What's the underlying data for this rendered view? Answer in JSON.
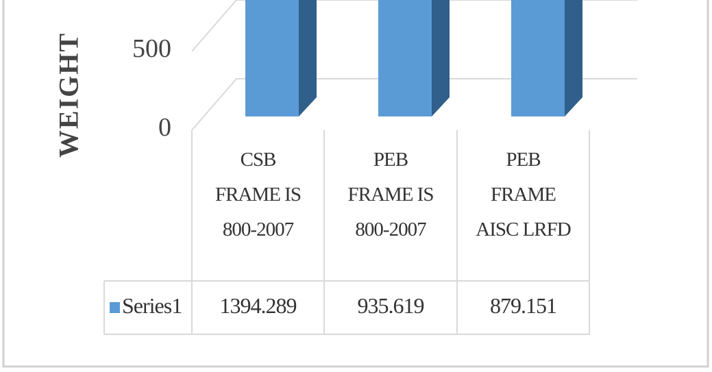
{
  "chart_data": {
    "type": "bar3d",
    "y_label": "WEIGHT",
    "categories": [
      "CSB FRAME IS 800-2007",
      "PEB FRAME IS 800-2007",
      "PEB FRAME AISC LRFD"
    ],
    "series": [
      {
        "name": "Series1",
        "color": "#5b9bd5",
        "values": [
          1394.289,
          935.619,
          879.151
        ]
      }
    ],
    "ylim": [
      0,
      1500
    ],
    "yticks": [
      0,
      500
    ],
    "grid": true,
    "data_table": true
  }
}
